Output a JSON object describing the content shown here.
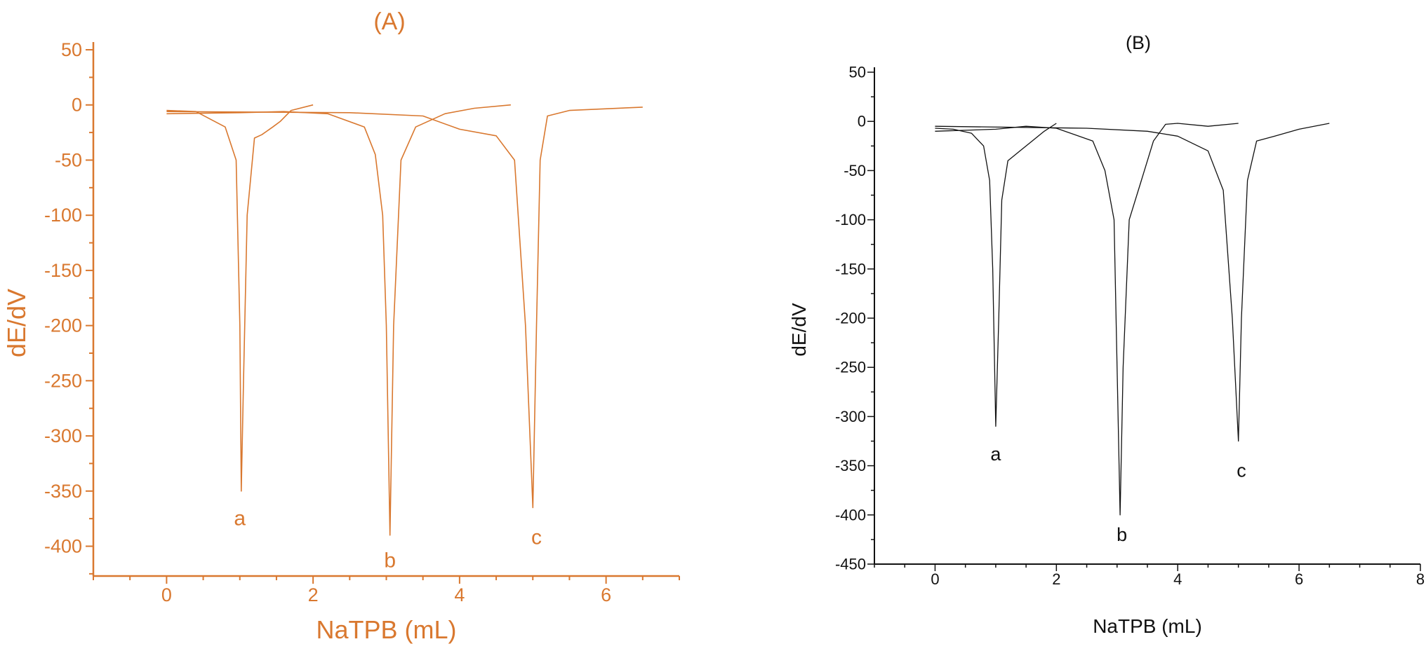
{
  "chart_data": [
    {
      "type": "line",
      "panel_label": "(A)",
      "color": "#d9782f",
      "xlabel": "NaTPB (mL)",
      "ylabel": "dE/dV",
      "xlim": [
        -1,
        7
      ],
      "ylim": [
        -427,
        57
      ],
      "x_ticks": [
        0,
        2,
        4,
        6
      ],
      "y_ticks": [
        50,
        0,
        -50,
        -100,
        -150,
        -200,
        -250,
        -300,
        -350,
        -400
      ],
      "x_minor_step": 0.5,
      "y_minor_step": 25,
      "grid": false,
      "series": [
        {
          "points": [
            [
              0,
              -5
            ],
            [
              0.4,
              -6
            ],
            [
              0.8,
              -20
            ],
            [
              0.95,
              -50
            ],
            [
              1.0,
              -200
            ],
            [
              1.02,
              -350
            ],
            [
              1.05,
              -250
            ],
            [
              1.1,
              -100
            ],
            [
              1.2,
              -30
            ],
            [
              1.3,
              -27
            ],
            [
              1.45,
              -20
            ],
            [
              1.55,
              -15
            ],
            [
              1.7,
              -5
            ],
            [
              2.0,
              0
            ]
          ],
          "label": "a",
          "label_at": [
            1.0,
            -375
          ]
        },
        {
          "points": [
            [
              0,
              -8
            ],
            [
              1.0,
              -7
            ],
            [
              1.6,
              -6
            ],
            [
              2.2,
              -8
            ],
            [
              2.7,
              -20
            ],
            [
              2.85,
              -45
            ],
            [
              2.95,
              -100
            ],
            [
              3.0,
              -200
            ],
            [
              3.05,
              -390
            ],
            [
              3.1,
              -200
            ],
            [
              3.2,
              -50
            ],
            [
              3.4,
              -20
            ],
            [
              3.8,
              -8
            ],
            [
              4.2,
              -3
            ],
            [
              4.7,
              0
            ]
          ],
          "label": "b",
          "label_at": [
            3.05,
            -413
          ]
        },
        {
          "points": [
            [
              0,
              -6
            ],
            [
              2.5,
              -7
            ],
            [
              3.5,
              -10
            ],
            [
              4.0,
              -22
            ],
            [
              4.5,
              -28
            ],
            [
              4.75,
              -50
            ],
            [
              4.9,
              -200
            ],
            [
              5.0,
              -365
            ],
            [
              5.05,
              -200
            ],
            [
              5.1,
              -50
            ],
            [
              5.2,
              -10
            ],
            [
              5.5,
              -5
            ],
            [
              6.5,
              -2
            ]
          ],
          "label": "c",
          "label_at": [
            5.05,
            -392
          ]
        }
      ]
    },
    {
      "type": "line",
      "panel_label": "(B)",
      "color": "#111111",
      "xlabel": "NaTPB (mL)",
      "ylabel": "dE/dV",
      "xlim": [
        -1,
        8
      ],
      "ylim": [
        -450,
        55
      ],
      "x_ticks": [
        0,
        2,
        4,
        6,
        8
      ],
      "y_ticks": [
        50,
        0,
        -50,
        -100,
        -150,
        -200,
        -250,
        -300,
        -350,
        -400,
        -450
      ],
      "x_minor_step": 0.5,
      "y_minor_step": 25,
      "grid": false,
      "series": [
        {
          "points": [
            [
              0,
              -7
            ],
            [
              0.3,
              -8
            ],
            [
              0.6,
              -12
            ],
            [
              0.8,
              -25
            ],
            [
              0.9,
              -60
            ],
            [
              0.95,
              -150
            ],
            [
              1.0,
              -310
            ],
            [
              1.05,
              -200
            ],
            [
              1.1,
              -80
            ],
            [
              1.2,
              -40
            ],
            [
              1.3,
              -35
            ],
            [
              1.4,
              -30
            ],
            [
              1.6,
              -20
            ],
            [
              1.8,
              -10
            ],
            [
              2.0,
              -2
            ]
          ],
          "label": "a",
          "label_at": [
            1.0,
            -338
          ]
        },
        {
          "points": [
            [
              0,
              -10
            ],
            [
              1.0,
              -8
            ],
            [
              1.5,
              -5
            ],
            [
              2.0,
              -7
            ],
            [
              2.6,
              -20
            ],
            [
              2.8,
              -50
            ],
            [
              2.95,
              -100
            ],
            [
              3.0,
              -250
            ],
            [
              3.05,
              -400
            ],
            [
              3.1,
              -250
            ],
            [
              3.2,
              -100
            ],
            [
              3.4,
              -60
            ],
            [
              3.6,
              -20
            ],
            [
              3.8,
              -3
            ],
            [
              4.0,
              -2
            ],
            [
              4.5,
              -5
            ],
            [
              5.0,
              -2
            ]
          ],
          "label": "b",
          "label_at": [
            3.08,
            -420
          ]
        },
        {
          "points": [
            [
              0,
              -5
            ],
            [
              2.5,
              -7
            ],
            [
              3.5,
              -10
            ],
            [
              4.0,
              -15
            ],
            [
              4.5,
              -30
            ],
            [
              4.75,
              -70
            ],
            [
              4.9,
              -200
            ],
            [
              5.0,
              -325
            ],
            [
              5.05,
              -200
            ],
            [
              5.15,
              -60
            ],
            [
              5.3,
              -20
            ],
            [
              5.6,
              -15
            ],
            [
              6.0,
              -8
            ],
            [
              6.5,
              -2
            ]
          ],
          "label": "c",
          "label_at": [
            5.05,
            -355
          ]
        }
      ]
    }
  ]
}
